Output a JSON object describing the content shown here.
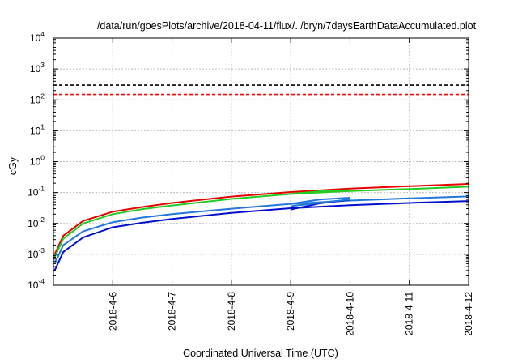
{
  "chart_data": {
    "type": "line",
    "title": "/data/run/goesPlots/archive/2018-04-11/flux/../bryn/7daysEarthDataAccumulated.plot",
    "xlabel": "Coordinated Universal Time (UTC)",
    "ylabel": "cGy",
    "x_ticks": [
      "2018-4-6",
      "2018-4-7",
      "2018-4-8",
      "2018-4-9",
      "2018-4-10",
      "2018-4-11",
      "2018-4-12"
    ],
    "xlim": [
      "2018-04-05T00:00",
      "2018-04-12T00:00"
    ],
    "y_scale": "log",
    "ylim": [
      0.0001,
      10000
    ],
    "y_ticks": [
      {
        "base": "10",
        "exp": "-4"
      },
      {
        "base": "10",
        "exp": "-3"
      },
      {
        "base": "10",
        "exp": "-2"
      },
      {
        "base": "10",
        "exp": "-1"
      },
      {
        "base": "10",
        "exp": "0"
      },
      {
        "base": "10",
        "exp": "1"
      },
      {
        "base": "10",
        "exp": "2"
      },
      {
        "base": "10",
        "exp": "3"
      },
      {
        "base": "10",
        "exp": "4"
      }
    ],
    "grid": true,
    "thresholds": [
      {
        "y": 300,
        "color": "#000000",
        "style": "dashed"
      },
      {
        "y": 150,
        "color": "#ff0000",
        "style": "dashed"
      }
    ],
    "series": [
      {
        "color": "#e60000",
        "points": [
          [
            "2018-04-05T00:30",
            0.001
          ],
          [
            "2018-04-05T04:00",
            0.004
          ],
          [
            "2018-04-05T12:00",
            0.012
          ],
          [
            "2018-04-06T00:00",
            0.024
          ],
          [
            "2018-04-06T12:00",
            0.034
          ],
          [
            "2018-04-07T00:00",
            0.046
          ],
          [
            "2018-04-08T00:00",
            0.074
          ],
          [
            "2018-04-09T00:00",
            0.104
          ],
          [
            "2018-04-10T00:00",
            0.135
          ],
          [
            "2018-04-11T00:00",
            0.16
          ],
          [
            "2018-04-12T00:00",
            0.19
          ]
        ]
      },
      {
        "color": "#22cc22",
        "points": [
          [
            "2018-04-05T00:30",
            0.0008
          ],
          [
            "2018-04-05T04:00",
            0.0032
          ],
          [
            "2018-04-05T12:00",
            0.01
          ],
          [
            "2018-04-06T00:00",
            0.02
          ],
          [
            "2018-04-06T12:00",
            0.029
          ],
          [
            "2018-04-07T00:00",
            0.038
          ],
          [
            "2018-04-08T00:00",
            0.062
          ],
          [
            "2018-04-09T00:00",
            0.09
          ],
          [
            "2018-04-10T00:00",
            0.112
          ],
          [
            "2018-04-11T00:00",
            0.13
          ],
          [
            "2018-04-12T00:00",
            0.155
          ]
        ]
      },
      {
        "color": "#2277dd",
        "points": [
          [
            "2018-04-05T00:30",
            0.0005
          ],
          [
            "2018-04-05T04:00",
            0.002
          ],
          [
            "2018-04-05T12:00",
            0.0055
          ],
          [
            "2018-04-06T00:00",
            0.011
          ],
          [
            "2018-04-06T12:00",
            0.0155
          ],
          [
            "2018-04-07T00:00",
            0.02
          ],
          [
            "2018-04-08T00:00",
            0.03
          ],
          [
            "2018-04-09T00:00",
            0.043
          ],
          [
            "2018-04-10T00:00",
            0.055
          ],
          [
            "2018-04-11T00:00",
            0.065
          ],
          [
            "2018-04-12T00:00",
            0.075
          ]
        ]
      },
      {
        "color": "#0010cc",
        "points": [
          [
            "2018-04-05T00:30",
            0.0003
          ],
          [
            "2018-04-05T04:00",
            0.0012
          ],
          [
            "2018-04-05T12:00",
            0.0035
          ],
          [
            "2018-04-06T00:00",
            0.0075
          ],
          [
            "2018-04-06T12:00",
            0.0105
          ],
          [
            "2018-04-07T00:00",
            0.014
          ],
          [
            "2018-04-08T00:00",
            0.022
          ],
          [
            "2018-04-09T00:00",
            0.031
          ],
          [
            "2018-04-10T00:00",
            0.039
          ],
          [
            "2018-04-11T00:00",
            0.046
          ],
          [
            "2018-04-12T00:00",
            0.053
          ]
        ]
      },
      {
        "color": "#22cc22",
        "points": [
          [
            "2018-04-09T00:00",
            0.09
          ],
          [
            "2018-04-09T12:00",
            0.11
          ],
          [
            "2018-04-10T00:00",
            0.12
          ]
        ]
      },
      {
        "color": "#2277dd",
        "points": [
          [
            "2018-04-09T00:00",
            0.043
          ],
          [
            "2018-04-09T12:00",
            0.06
          ],
          [
            "2018-04-10T00:00",
            0.068
          ]
        ]
      },
      {
        "color": "#0010cc",
        "points": [
          [
            "2018-04-09T00:00",
            0.028
          ],
          [
            "2018-04-09T12:00",
            0.045
          ],
          [
            "2018-04-10T00:00",
            0.058
          ]
        ]
      },
      {
        "color": "#2277dd",
        "points": [
          [
            "2018-04-09T00:00",
            0.036
          ],
          [
            "2018-04-09T12:00",
            0.047
          ],
          [
            "2018-04-10T00:00",
            0.06
          ]
        ]
      }
    ]
  }
}
